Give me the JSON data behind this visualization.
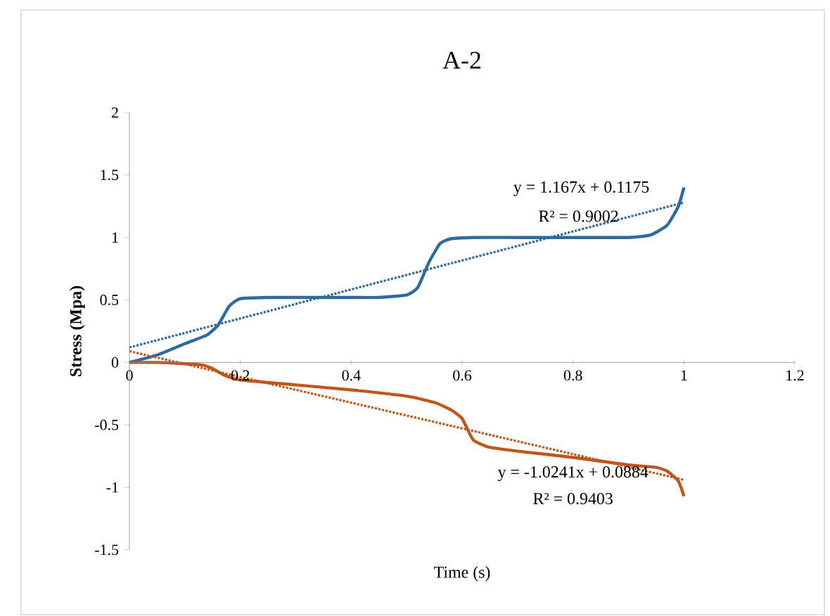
{
  "chart_data": {
    "type": "line",
    "title": "A-2",
    "xlabel": "Time (s)",
    "ylabel": "Stress (Mpa)",
    "xlim": [
      0,
      1.2
    ],
    "ylim": [
      -1.5,
      2
    ],
    "xticks": [
      0,
      0.2,
      0.4,
      0.6,
      0.8,
      1,
      1.2
    ],
    "yticks": [
      -1.5,
      -1,
      -0.5,
      0,
      0.5,
      1,
      1.5,
      2
    ],
    "series": [
      {
        "color": "#2e6aa0",
        "line_style": "solid",
        "x": [
          0,
          0.05,
          0.1,
          0.14,
          0.16,
          0.18,
          0.2,
          0.25,
          0.3,
          0.4,
          0.45,
          0.5,
          0.52,
          0.54,
          0.56,
          0.58,
          0.62,
          0.7,
          0.8,
          0.9,
          0.94,
          0.97,
          0.99,
          1.0
        ],
        "values": [
          0,
          0.06,
          0.15,
          0.22,
          0.3,
          0.45,
          0.51,
          0.52,
          0.52,
          0.52,
          0.52,
          0.54,
          0.6,
          0.8,
          0.95,
          0.99,
          1.0,
          1.0,
          1.0,
          1.0,
          1.02,
          1.1,
          1.25,
          1.4
        ]
      },
      {
        "color": "#c0561a",
        "line_style": "solid",
        "x": [
          0,
          0.05,
          0.1,
          0.13,
          0.15,
          0.17,
          0.2,
          0.3,
          0.4,
          0.5,
          0.55,
          0.58,
          0.6,
          0.62,
          0.65,
          0.7,
          0.8,
          0.9,
          0.95,
          0.97,
          0.99,
          1.0
        ],
        "values": [
          0,
          0,
          -0.01,
          -0.02,
          -0.05,
          -0.1,
          -0.14,
          -0.18,
          -0.22,
          -0.27,
          -0.32,
          -0.38,
          -0.45,
          -0.62,
          -0.68,
          -0.71,
          -0.76,
          -0.82,
          -0.84,
          -0.87,
          -0.95,
          -1.07
        ]
      },
      {
        "color": "#2e6aa0",
        "line_style": "dotted",
        "x": [
          0,
          1
        ],
        "values": [
          0.12,
          1.28
        ]
      },
      {
        "color": "#c0561a",
        "line_style": "dotted",
        "x": [
          0,
          1
        ],
        "values": [
          0.09,
          -0.94
        ]
      }
    ],
    "annotations": [
      "y = 1.167x + 0.1175",
      "R² = 0.9002",
      "y = -1.0241x + 0.0884",
      "R² = 0.9403"
    ]
  }
}
